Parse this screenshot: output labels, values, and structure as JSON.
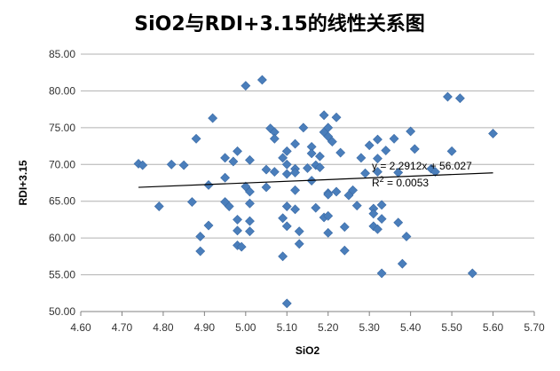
{
  "chart_data": {
    "type": "scatter",
    "title": "SiO2与RDI+3.15的线性关系图",
    "xlabel": "SiO2",
    "ylabel": "RDI+3.15",
    "xlim": [
      4.6,
      5.7
    ],
    "ylim": [
      50,
      85
    ],
    "xticks": [
      "4.60",
      "4.70",
      "4.80",
      "4.90",
      "5.00",
      "5.10",
      "5.20",
      "5.30",
      "5.40",
      "5.50",
      "5.60",
      "5.70"
    ],
    "yticks": [
      "50.00",
      "55.00",
      "60.00",
      "65.00",
      "70.00",
      "75.00",
      "80.00",
      "85.00"
    ],
    "grid": true,
    "marker_color": "#4a7ebb",
    "trendline": {
      "slope": 2.2912,
      "intercept": 56.027,
      "x_range": [
        4.74,
        5.6
      ],
      "equation": "y = 2.2912x + 56.027",
      "r2_prefix": "R",
      "r2_sup": "2",
      "r2_value": " = 0.0053"
    },
    "points": [
      [
        4.74,
        70.1
      ],
      [
        4.75,
        69.9
      ],
      [
        4.79,
        64.3
      ],
      [
        4.82,
        70.0
      ],
      [
        4.85,
        69.9
      ],
      [
        4.87,
        64.9
      ],
      [
        4.88,
        73.5
      ],
      [
        4.89,
        60.2
      ],
      [
        4.89,
        58.2
      ],
      [
        4.91,
        67.2
      ],
      [
        4.91,
        61.7
      ],
      [
        4.92,
        76.3
      ],
      [
        4.95,
        70.9
      ],
      [
        4.95,
        68.2
      ],
      [
        4.95,
        64.9
      ],
      [
        4.96,
        64.3
      ],
      [
        4.97,
        70.4
      ],
      [
        4.98,
        71.8
      ],
      [
        4.98,
        62.5
      ],
      [
        4.98,
        61.0
      ],
      [
        4.98,
        59.0
      ],
      [
        4.99,
        58.8
      ],
      [
        5.0,
        80.7
      ],
      [
        5.0,
        67.0
      ],
      [
        5.01,
        70.6
      ],
      [
        5.01,
        66.3
      ],
      [
        5.01,
        64.7
      ],
      [
        5.01,
        62.3
      ],
      [
        5.01,
        60.9
      ],
      [
        5.04,
        81.5
      ],
      [
        5.05,
        69.3
      ],
      [
        5.05,
        66.9
      ],
      [
        5.06,
        74.9
      ],
      [
        5.07,
        74.4
      ],
      [
        5.07,
        73.5
      ],
      [
        5.07,
        69.0
      ],
      [
        5.09,
        70.9
      ],
      [
        5.09,
        62.7
      ],
      [
        5.09,
        57.5
      ],
      [
        5.1,
        71.8
      ],
      [
        5.1,
        70.0
      ],
      [
        5.1,
        68.7
      ],
      [
        5.1,
        64.3
      ],
      [
        5.1,
        61.6
      ],
      [
        5.1,
        51.1
      ],
      [
        5.12,
        72.8
      ],
      [
        5.12,
        69.4
      ],
      [
        5.12,
        68.9
      ],
      [
        5.12,
        66.5
      ],
      [
        5.12,
        63.9
      ],
      [
        5.13,
        60.9
      ],
      [
        5.13,
        59.2
      ],
      [
        5.14,
        75.0
      ],
      [
        5.15,
        69.5
      ],
      [
        5.16,
        72.4
      ],
      [
        5.16,
        71.5
      ],
      [
        5.16,
        67.8
      ],
      [
        5.17,
        69.9
      ],
      [
        5.17,
        64.1
      ],
      [
        5.18,
        69.6
      ],
      [
        5.18,
        71.1
      ],
      [
        5.19,
        76.7
      ],
      [
        5.19,
        74.4
      ],
      [
        5.19,
        62.8
      ],
      [
        5.2,
        75.0
      ],
      [
        5.2,
        73.8
      ],
      [
        5.2,
        66.1
      ],
      [
        5.2,
        65.9
      ],
      [
        5.2,
        63.0
      ],
      [
        5.2,
        60.7
      ],
      [
        5.21,
        73.1
      ],
      [
        5.22,
        76.4
      ],
      [
        5.22,
        66.3
      ],
      [
        5.23,
        71.6
      ],
      [
        5.24,
        61.5
      ],
      [
        5.24,
        58.3
      ],
      [
        5.25,
        65.8
      ],
      [
        5.26,
        66.5
      ],
      [
        5.27,
        64.4
      ],
      [
        5.28,
        70.9
      ],
      [
        5.29,
        68.8
      ],
      [
        5.3,
        72.6
      ],
      [
        5.31,
        64.0
      ],
      [
        5.31,
        63.3
      ],
      [
        5.31,
        61.6
      ],
      [
        5.32,
        73.4
      ],
      [
        5.32,
        70.8
      ],
      [
        5.32,
        69.0
      ],
      [
        5.32,
        61.2
      ],
      [
        5.33,
        64.5
      ],
      [
        5.33,
        62.6
      ],
      [
        5.33,
        55.2
      ],
      [
        5.34,
        71.9
      ],
      [
        5.36,
        73.5
      ],
      [
        5.37,
        68.9
      ],
      [
        5.37,
        62.1
      ],
      [
        5.38,
        56.5
      ],
      [
        5.39,
        60.2
      ],
      [
        5.4,
        74.5
      ],
      [
        5.41,
        72.1
      ],
      [
        5.45,
        69.4
      ],
      [
        5.46,
        69.0
      ],
      [
        5.49,
        79.2
      ],
      [
        5.5,
        71.8
      ],
      [
        5.52,
        79.0
      ],
      [
        5.55,
        55.2
      ],
      [
        5.6,
        74.2
      ]
    ]
  }
}
